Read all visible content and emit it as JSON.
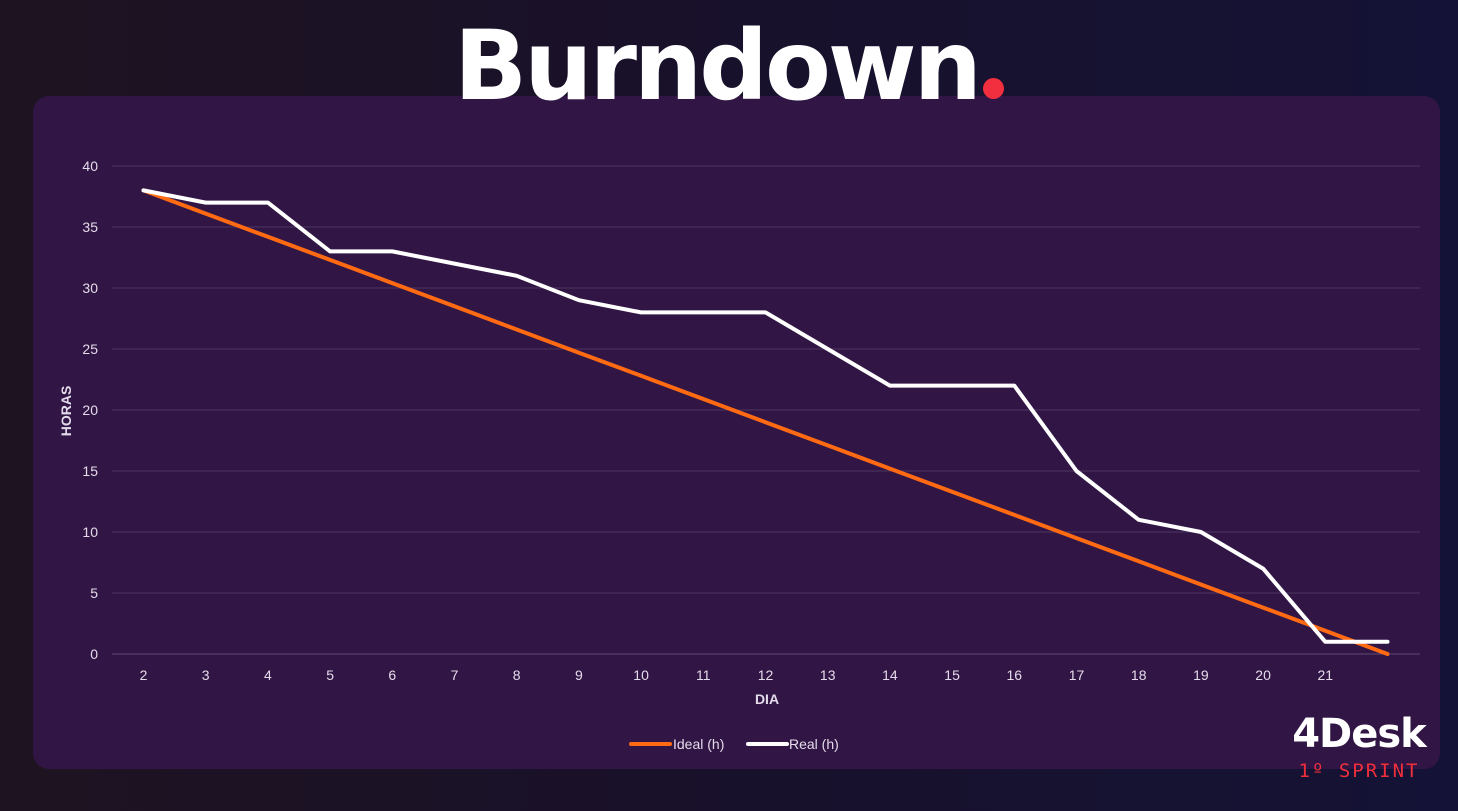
{
  "header": {
    "title": "Burndown",
    "accent_color": "#f22f3e"
  },
  "branding": {
    "name": "4Desk",
    "subtitle": "1º SPRINT"
  },
  "chart_data": {
    "type": "line",
    "title": "",
    "xlabel": "DIA",
    "ylabel": "HORAS",
    "x": [
      2,
      3,
      4,
      5,
      6,
      7,
      8,
      9,
      10,
      11,
      12,
      13,
      14,
      15,
      16,
      17,
      18,
      19,
      20,
      21,
      22
    ],
    "x_tick_labels": [
      "2",
      "3",
      "4",
      "5",
      "6",
      "7",
      "8",
      "9",
      "10",
      "11",
      "12",
      "13",
      "14",
      "15",
      "16",
      "17",
      "18",
      "19",
      "20",
      "21",
      ""
    ],
    "y_ticks": [
      0,
      5,
      10,
      15,
      20,
      25,
      30,
      35,
      40
    ],
    "ylim": [
      0,
      40
    ],
    "grid": true,
    "legend_position": "bottom-center",
    "series": [
      {
        "name": "Ideal (h)",
        "color": "#ff6a13",
        "values": [
          38,
          36.1,
          34.2,
          32.3,
          30.4,
          28.5,
          26.6,
          24.7,
          22.8,
          20.9,
          19,
          17.1,
          15.2,
          13.3,
          11.4,
          9.5,
          7.6,
          5.7,
          3.8,
          1.9,
          0
        ]
      },
      {
        "name": "Real (h)",
        "color": "#ffffff",
        "values": [
          38,
          37,
          37,
          33,
          33,
          32,
          31,
          29,
          28,
          28,
          28,
          25,
          22,
          22,
          22,
          15,
          11,
          10,
          7,
          1,
          1
        ]
      }
    ]
  }
}
